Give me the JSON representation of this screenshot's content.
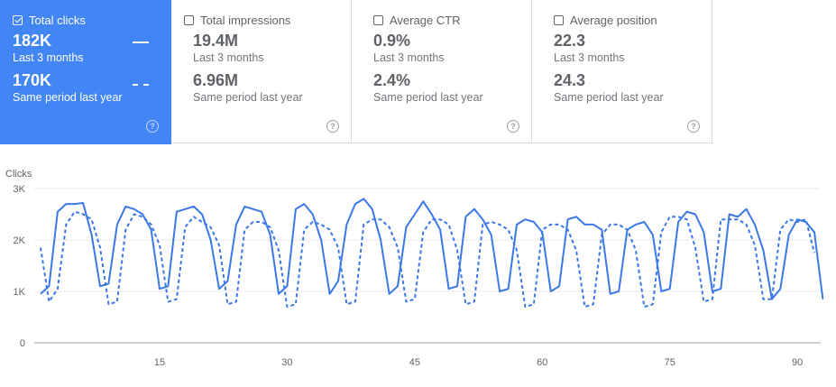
{
  "cards": [
    {
      "label": "Total clicks",
      "value": "182K",
      "period": "Last 3 months",
      "prev_value": "170K",
      "prev_period": "Same period last year",
      "selected": true
    },
    {
      "label": "Total impressions",
      "value": "19.4M",
      "period": "Last 3 months",
      "prev_value": "6.96M",
      "prev_period": "Same period last year",
      "selected": false
    },
    {
      "label": "Average CTR",
      "value": "0.9%",
      "period": "Last 3 months",
      "prev_value": "2.4%",
      "prev_period": "Same period last year",
      "selected": false
    },
    {
      "label": "Average position",
      "value": "22.3",
      "period": "Last 3 months",
      "prev_value": "24.3",
      "prev_period": "Same period last year",
      "selected": false
    }
  ],
  "help_glyph": "?",
  "colors": {
    "selected_card": "#4285f4",
    "series": "#3b78e7",
    "grid": "#e8eaed",
    "axis": "#5f6368"
  },
  "chart_data": {
    "type": "line",
    "ylabel": "Clicks",
    "ylim": [
      0,
      3000
    ],
    "yticks": [
      0,
      1000,
      2000,
      3000
    ],
    "ytick_labels": [
      "0",
      "1K",
      "2K",
      "3K"
    ],
    "xlim": [
      1,
      92
    ],
    "xticks": [
      15,
      30,
      45,
      60,
      75,
      90
    ],
    "grid": true,
    "series": [
      {
        "style": "solid",
        "values": [
          950,
          1100,
          2550,
          2700,
          2700,
          2720,
          2100,
          1100,
          1150,
          2300,
          2650,
          2600,
          2500,
          2200,
          1050,
          1100,
          2550,
          2600,
          2650,
          2500,
          2000,
          1050,
          1200,
          2300,
          2650,
          2600,
          2550,
          2100,
          950,
          1100,
          2600,
          2700,
          2500,
          2000,
          950,
          1200,
          2300,
          2700,
          2800,
          2600,
          2000,
          950,
          1100,
          2250,
          2500,
          2750,
          2500,
          2200,
          1050,
          1100,
          2450,
          2600,
          2400,
          2100,
          1000,
          1050,
          2300,
          2400,
          2350,
          2150,
          1000,
          1100,
          2400,
          2450,
          2300,
          2300,
          2200,
          950,
          1000,
          2200,
          2300,
          2350,
          2100,
          1000,
          1050,
          2350,
          2550,
          2500,
          2150,
          1000,
          1050,
          2500,
          2450,
          2600,
          2300,
          1800,
          850,
          1050,
          2100,
          2400,
          2350,
          2150,
          850
        ]
      },
      {
        "style": "dashed",
        "values": [
          1850,
          800,
          1050,
          2300,
          2550,
          2500,
          2400,
          1850,
          750,
          800,
          2200,
          2500,
          2450,
          2300,
          1900,
          800,
          850,
          2250,
          2450,
          2350,
          2250,
          1900,
          750,
          800,
          2200,
          2350,
          2350,
          2250,
          1800,
          700,
          750,
          2200,
          2350,
          2300,
          2200,
          1850,
          750,
          800,
          2300,
          2400,
          2400,
          2250,
          1850,
          800,
          850,
          2150,
          2400,
          2400,
          2300,
          1800,
          750,
          800,
          2300,
          2350,
          2300,
          2200,
          1800,
          700,
          750,
          2200,
          2300,
          2300,
          2200,
          1800,
          700,
          750,
          2100,
          2300,
          2300,
          2200,
          1800,
          700,
          750,
          2150,
          2450,
          2450,
          2400,
          1850,
          800,
          850,
          2400,
          2400,
          2400,
          2300,
          1900,
          850,
          850,
          2200,
          2400,
          2350,
          2400,
          1750
        ]
      }
    ]
  }
}
